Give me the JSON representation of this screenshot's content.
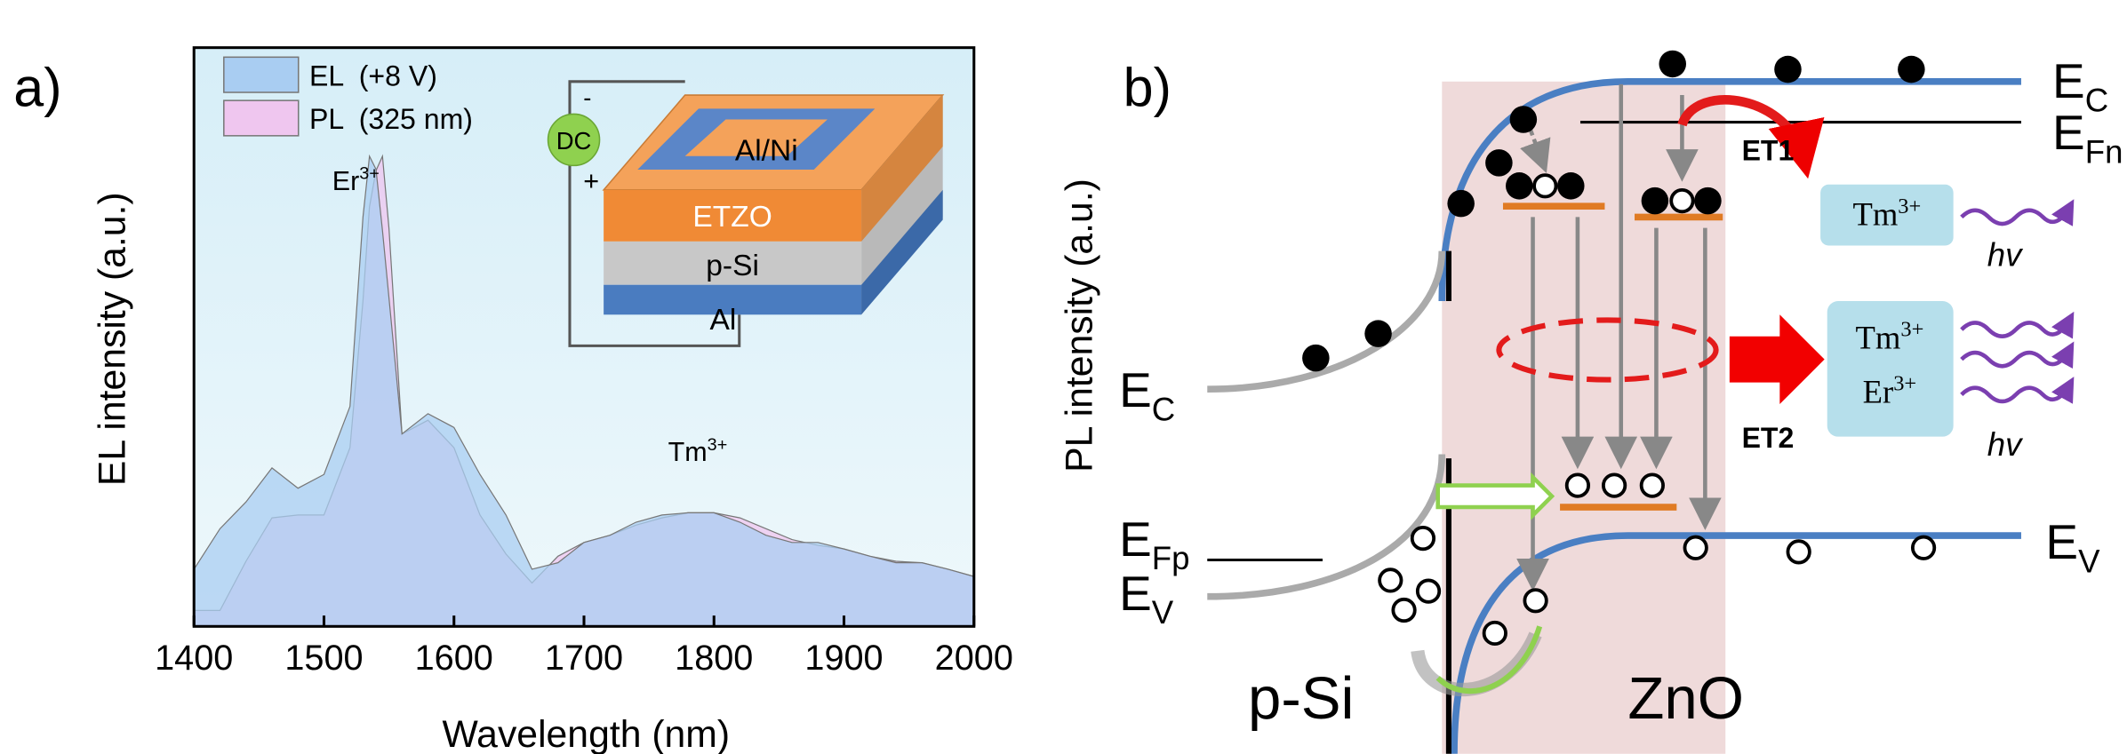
{
  "chart_data": {
    "type": "area",
    "panel_label": "a)",
    "x_label": "Wavelength (nm)",
    "y_label": "EL intensity (a.u.)",
    "annotations": [
      {
        "ion": "Er",
        "charge": "3+",
        "x": 1537
      },
      {
        "ion": "Tm",
        "charge": "3+",
        "x": 1800
      }
    ],
    "x": [
      1400,
      1420,
      1440,
      1460,
      1480,
      1500,
      1520,
      1530,
      1535,
      1540,
      1545,
      1550,
      1560,
      1580,
      1600,
      1620,
      1640,
      1660,
      1680,
      1700,
      1720,
      1740,
      1760,
      1780,
      1800,
      1820,
      1840,
      1860,
      1880,
      1900,
      1920,
      1940,
      1960,
      1980,
      2000
    ],
    "series": [
      {
        "name": "EL  (+8 V)",
        "color": "#a9cdf2",
        "values": [
          0.79,
          1.35,
          1.72,
          2.19,
          1.91,
          2.1,
          3.04,
          5.66,
          6.5,
          6.32,
          5.47,
          4.54,
          2.66,
          2.94,
          2.75,
          2.1,
          1.54,
          0.79,
          0.88,
          1.16,
          1.26,
          1.44,
          1.54,
          1.57,
          1.57,
          1.44,
          1.26,
          1.16,
          1.16,
          1.07,
          0.97,
          0.88,
          0.88,
          0.79,
          0.69
        ]
      },
      {
        "name": "PL  (325 nm)",
        "color": "#efc6ef",
        "values": [
          0.22,
          0.22,
          0.9,
          1.5,
          1.54,
          1.54,
          2.47,
          4.5,
          5.8,
          6.3,
          6.5,
          5.5,
          2.66,
          2.85,
          2.47,
          1.54,
          1.0,
          0.6,
          0.97,
          1.16,
          1.26,
          1.4,
          1.5,
          1.57,
          1.57,
          1.5,
          1.35,
          1.2,
          1.12,
          1.07,
          0.97,
          0.9,
          0.88,
          0.79,
          0.69
        ]
      }
    ],
    "xlim": [
      1400,
      2000
    ],
    "xticks": [
      1400,
      1500,
      1600,
      1700,
      1800,
      1900,
      2000
    ],
    "ylim": [
      0,
      8
    ],
    "inset": {
      "source": "DC",
      "minus": "-",
      "plus": "+",
      "layers": [
        "Al/Ni",
        "ETZO",
        "p-Si",
        "Al"
      ]
    }
  },
  "panel_b": {
    "label": "b)",
    "y_label": "PL intensity (a.u.)",
    "ec_right": {
      "main": "E",
      "sub": "C"
    },
    "efn": {
      "main": "E",
      "sub": "Fn"
    },
    "ec_left": {
      "main": "E",
      "sub": "C"
    },
    "efp": {
      "main": "E",
      "sub": "Fp"
    },
    "ev_left": {
      "main": "E",
      "sub": "V"
    },
    "ev_right": {
      "main": "E",
      "sub": "V"
    },
    "et1": "ET1",
    "et2": "ET2",
    "box1": [
      {
        "ion": "Tm",
        "charge": "3+"
      }
    ],
    "box2": [
      {
        "ion": "Tm",
        "charge": "3+"
      },
      {
        "ion": "Er",
        "charge": "3+"
      }
    ],
    "hv": [
      "hv",
      "hv"
    ],
    "left_material": "p-Si",
    "right_material": "ZnO"
  }
}
